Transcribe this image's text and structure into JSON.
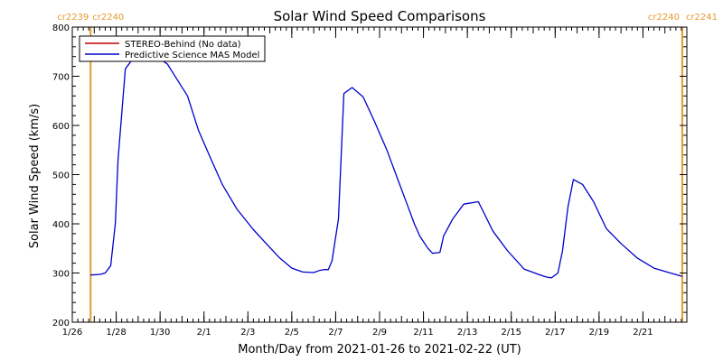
{
  "chart_data": {
    "type": "line",
    "title": "Solar Wind Speed Comparisons",
    "xlabel": "Month/Day from 2021-01-26 to 2021-02-22 (UT)",
    "ylabel": "Solar Wind Speed (km/s)",
    "ylim": [
      200,
      800
    ],
    "xlim": [
      "2021-01-26T00:00",
      "2021-02-23T00:00"
    ],
    "x_ticks": [
      {
        "date": "2021-01-26",
        "label": "1/26"
      },
      {
        "date": "2021-01-28",
        "label": "1/28"
      },
      {
        "date": "2021-01-30",
        "label": "1/30"
      },
      {
        "date": "2021-02-01",
        "label": "2/1"
      },
      {
        "date": "2021-02-03",
        "label": "2/3"
      },
      {
        "date": "2021-02-05",
        "label": "2/5"
      },
      {
        "date": "2021-02-07",
        "label": "2/7"
      },
      {
        "date": "2021-02-09",
        "label": "2/9"
      },
      {
        "date": "2021-02-11",
        "label": "2/11"
      },
      {
        "date": "2021-02-13",
        "label": "2/13"
      },
      {
        "date": "2021-02-15",
        "label": "2/15"
      },
      {
        "date": "2021-02-17",
        "label": "2/17"
      },
      {
        "date": "2021-02-19",
        "label": "2/19"
      },
      {
        "date": "2021-02-21",
        "label": "2/21"
      }
    ],
    "y_ticks": [
      200,
      300,
      400,
      500,
      600,
      700,
      800
    ],
    "grid": false,
    "legend_position": "top-left",
    "carrington_markers": [
      {
        "date": "2021-01-26T20:00",
        "left_label": "cr2239",
        "right_label": "cr2240",
        "color": "#e69a2e"
      },
      {
        "date": "2021-02-22T19:00",
        "left_label": "cr2240",
        "right_label": "cr2241",
        "color": "#e69a2e"
      }
    ],
    "series": [
      {
        "name": "STEREO-Behind (No data)",
        "color": "#c00000",
        "x": [],
        "y": []
      },
      {
        "name": "Predictive Science MAS Model",
        "color": "#0000cc",
        "x": [
          "2021-01-26T20:00",
          "2021-01-27T06:00",
          "2021-01-27T12:00",
          "2021-01-27T18:00",
          "2021-01-27T23:00",
          "2021-01-28T02:00",
          "2021-01-28T10:00",
          "2021-01-28T20:00",
          "2021-01-29T08:00",
          "2021-01-29T20:00",
          "2021-01-30T08:00",
          "2021-01-30T18:00",
          "2021-01-31T06:00",
          "2021-01-31T18:00",
          "2021-02-01T08:00",
          "2021-02-01T20:00",
          "2021-02-02T12:00",
          "2021-02-03T06:00",
          "2021-02-03T20:00",
          "2021-02-04T10:00",
          "2021-02-05T00:00",
          "2021-02-05T12:00",
          "2021-02-06T00:00",
          "2021-02-06T06:00",
          "2021-02-06T11:00",
          "2021-02-06T16:00",
          "2021-02-06T20:00",
          "2021-02-07T03:00",
          "2021-02-07T09:00",
          "2021-02-07T18:00",
          "2021-02-08T06:00",
          "2021-02-08T18:00",
          "2021-02-09T08:00",
          "2021-02-09T20:00",
          "2021-02-10T06:00",
          "2021-02-10T14:00",
          "2021-02-10T20:00",
          "2021-02-11T05:00",
          "2021-02-11T10:00",
          "2021-02-11T18:00",
          "2021-02-11T22:00",
          "2021-02-12T08:00",
          "2021-02-12T20:00",
          "2021-02-13T12:00",
          "2021-02-14T04:00",
          "2021-02-14T20:00",
          "2021-02-15T14:00",
          "2021-02-16T06:00",
          "2021-02-16T14:00",
          "2021-02-16T20:00",
          "2021-02-17T03:00",
          "2021-02-17T08:00",
          "2021-02-17T14:00",
          "2021-02-17T20:00",
          "2021-02-18T06:00",
          "2021-02-18T18:00",
          "2021-02-19T08:00",
          "2021-02-20T00:00",
          "2021-02-20T18:00",
          "2021-02-21T12:00",
          "2021-02-22T06:00",
          "2021-02-22T19:00"
        ],
        "y": [
          296,
          297,
          300,
          315,
          400,
          530,
          715,
          740,
          745,
          740,
          725,
          695,
          660,
          590,
          530,
          480,
          430,
          388,
          360,
          332,
          310,
          302,
          301,
          305,
          307,
          307,
          325,
          410,
          665,
          677,
          658,
          610,
          550,
          490,
          440,
          400,
          375,
          350,
          340,
          342,
          375,
          410,
          440,
          445,
          385,
          345,
          308,
          297,
          292,
          290,
          300,
          345,
          435,
          490,
          480,
          445,
          390,
          360,
          330,
          310,
          300,
          293
        ]
      }
    ]
  }
}
